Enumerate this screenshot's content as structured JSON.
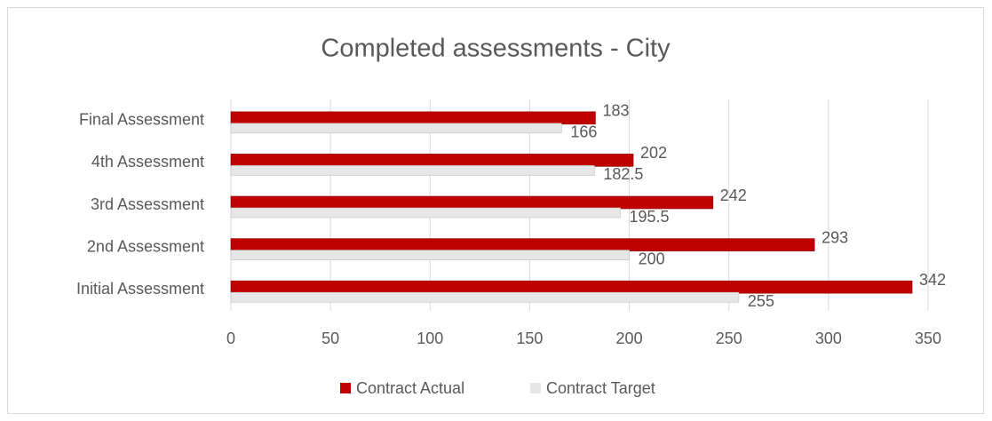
{
  "chart_data": {
    "type": "bar",
    "orientation": "horizontal",
    "title": "Completed assessments - City",
    "categories": [
      "Initial Assessment",
      "2nd Assessment",
      "3rd Assessment",
      "4th Assessment",
      "Final Assessment"
    ],
    "series": [
      {
        "name": "Contract Actual",
        "color": "#c00000",
        "values": [
          342,
          293,
          242,
          202,
          183
        ]
      },
      {
        "name": "Contract Target",
        "color": "#e7e6e6",
        "values": [
          255,
          200,
          195.5,
          182.5,
          166
        ]
      }
    ],
    "xlim": [
      0,
      350
    ],
    "xticks": [
      0,
      50,
      100,
      150,
      200,
      250,
      300,
      350
    ],
    "grid": true,
    "legend": "bottom"
  }
}
